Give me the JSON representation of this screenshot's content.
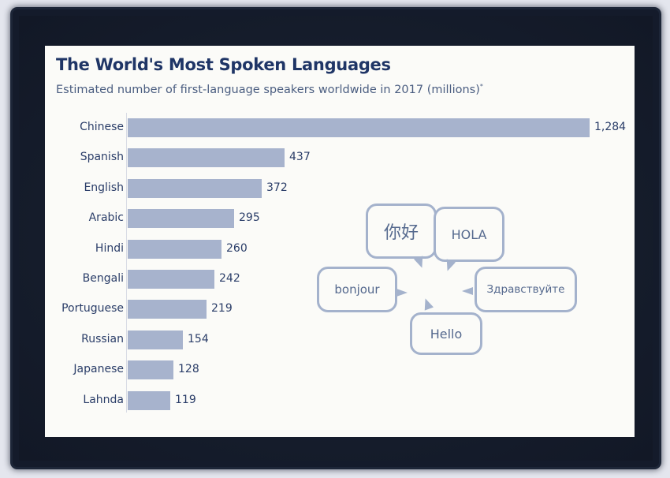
{
  "header": {
    "title": "The World's Most Spoken Languages",
    "subtitle": "Estimated number of first-language speakers worldwide in 2017 (millions)",
    "subtitle_mark": "*"
  },
  "chart_data": {
    "type": "bar",
    "orientation": "horizontal",
    "title": "The World's Most Spoken Languages",
    "subtitle": "Estimated number of first-language speakers worldwide in 2017 (millions)*",
    "categories": [
      "Chinese",
      "Spanish",
      "English",
      "Arabic",
      "Hindi",
      "Bengali",
      "Portuguese",
      "Russian",
      "Japanese",
      "Lahnda"
    ],
    "values": [
      1284,
      437,
      372,
      295,
      260,
      242,
      219,
      154,
      128,
      119
    ],
    "value_labels": [
      "1,284",
      "437",
      "372",
      "295",
      "260",
      "242",
      "219",
      "154",
      "128",
      "119"
    ],
    "xlabel": "",
    "ylabel": "",
    "unit": "millions",
    "xlim": [
      0,
      1284
    ],
    "grid": false,
    "legend": null,
    "bar_color": "#a7b3cd"
  },
  "illustration": {
    "greetings": [
      "你好",
      "HOLA",
      "bonjour",
      "Здравствуйте",
      "Hello"
    ]
  },
  "colors": {
    "title": "#1f3566",
    "subtitle": "#4a5d80",
    "bar": "#a7b3cd",
    "label": "#2a3d68",
    "frame": "#141b2b",
    "panel": "#fbfbf8",
    "bubble_border": "#a4b2cc"
  }
}
